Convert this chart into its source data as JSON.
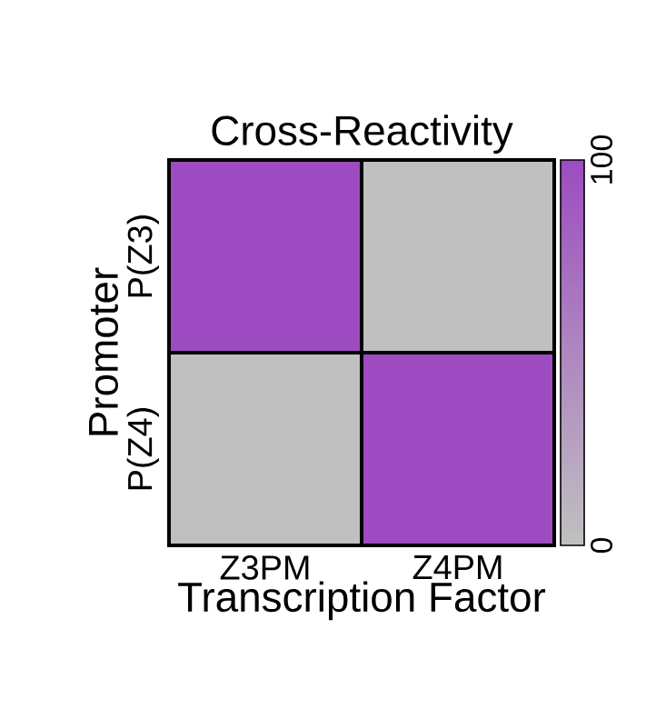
{
  "chart_data": {
    "type": "heatmap",
    "title": "Cross-Reactivity",
    "xlabel": "Transcription Factor",
    "ylabel": "Promoter",
    "categories": [
      "Z3PM",
      "Z4PM"
    ],
    "y_categories": [
      "P(Z3)",
      "P(Z4)"
    ],
    "cells": [
      [
        100,
        0
      ],
      [
        0,
        100
      ]
    ],
    "clim": [
      0,
      100
    ],
    "cticks": [
      0,
      100
    ],
    "colors": [
      "#c0c0c0",
      "#9c4cc0"
    ]
  }
}
